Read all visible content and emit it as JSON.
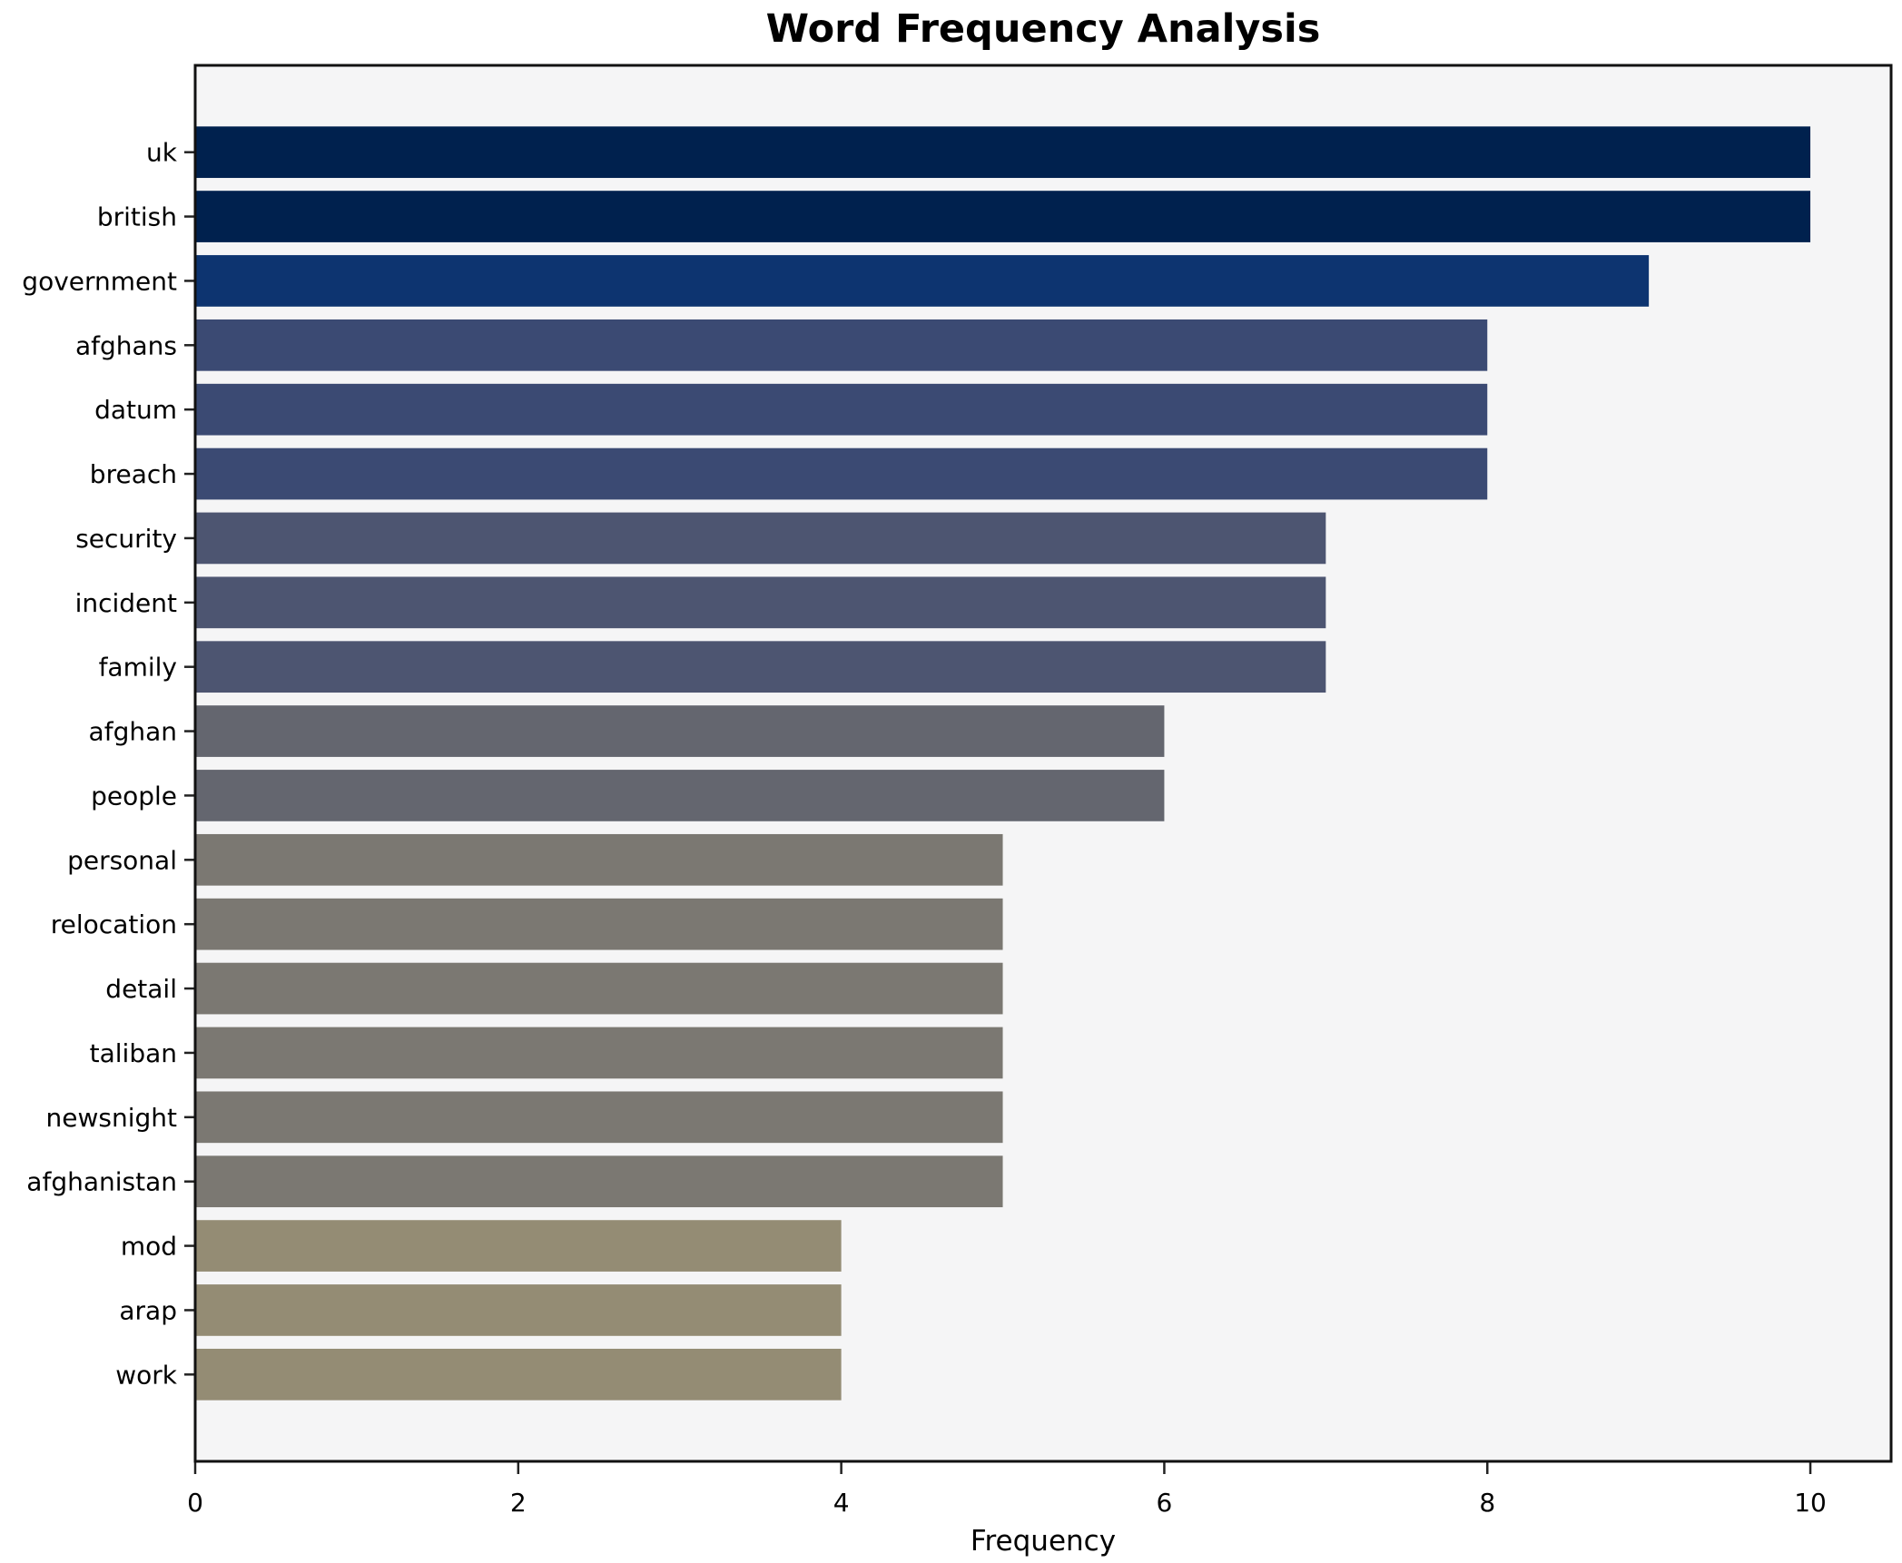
{
  "chart_data": {
    "type": "bar",
    "orientation": "horizontal",
    "title": "Word Frequency Analysis",
    "xlabel": "Frequency",
    "ylabel": "",
    "categories": [
      "uk",
      "british",
      "government",
      "afghans",
      "datum",
      "breach",
      "security",
      "incident",
      "family",
      "afghan",
      "people",
      "personal",
      "relocation",
      "detail",
      "taliban",
      "newsnight",
      "afghanistan",
      "mod",
      "arap",
      "work"
    ],
    "values": [
      10,
      10,
      9,
      8,
      8,
      8,
      7,
      7,
      7,
      6,
      6,
      5,
      5,
      5,
      5,
      5,
      5,
      4,
      4,
      4
    ],
    "bar_colors": [
      "#00214e",
      "#00214e",
      "#0d3470",
      "#3b4a73",
      "#3b4a73",
      "#3b4a73",
      "#4d5571",
      "#4d5571",
      "#4d5571",
      "#64666f",
      "#64666f",
      "#7b7872",
      "#7b7872",
      "#7b7872",
      "#7b7872",
      "#7b7872",
      "#7b7872",
      "#948c74",
      "#948c74",
      "#948c74"
    ],
    "xlim": [
      0,
      10.5
    ],
    "x_ticks": [
      0,
      2,
      4,
      6,
      8,
      10
    ],
    "grid": false,
    "legend_position": "none",
    "plot_background": "#f5f5f6",
    "figure_background": "#ffffff",
    "spine_color": "#111111",
    "tick_color": "#222222",
    "text_color": "#000000"
  }
}
